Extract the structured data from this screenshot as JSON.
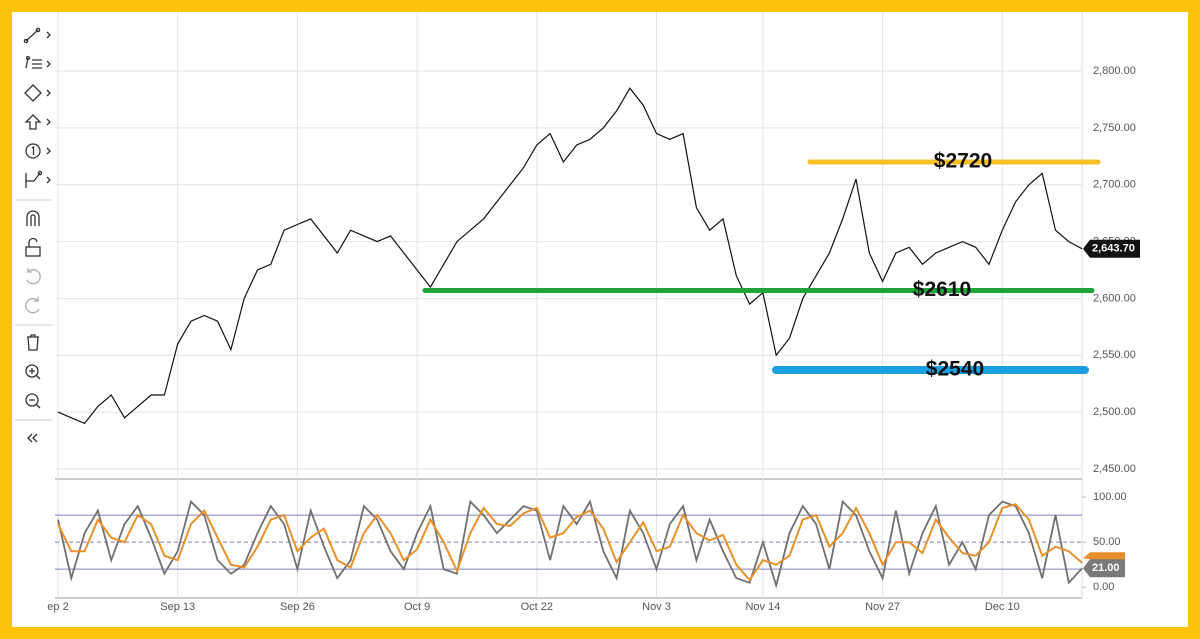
{
  "chart_data": {
    "type": "line",
    "color": "#111111",
    "categories": [
      "ep 2",
      null,
      null,
      null,
      null,
      null,
      null,
      null,
      null,
      "Sep 13",
      null,
      null,
      null,
      null,
      null,
      null,
      null,
      null,
      "Sep 26",
      null,
      null,
      null,
      null,
      null,
      null,
      null,
      null,
      "Oct 9",
      null,
      null,
      null,
      null,
      null,
      null,
      null,
      null,
      "Oct 22",
      null,
      null,
      null,
      null,
      null,
      null,
      null,
      null,
      "Nov 3",
      null,
      null,
      null,
      null,
      null,
      null,
      null,
      "Nov 14",
      null,
      null,
      null,
      null,
      null,
      null,
      null,
      null,
      "Nov 27",
      null,
      null,
      null,
      null,
      null,
      null,
      null,
      null,
      "Dec 10",
      null,
      null,
      null,
      null,
      null,
      null
    ],
    "values": [
      2500,
      2495,
      2490,
      2505,
      2515,
      2495,
      2505,
      2515,
      2515,
      2560,
      2580,
      2585,
      2580,
      2555,
      2600,
      2625,
      2630,
      2660,
      2665,
      2670,
      2655,
      2640,
      2660,
      2655,
      2650,
      2655,
      2640,
      2625,
      2610,
      2630,
      2650,
      2660,
      2670,
      2685,
      2700,
      2715,
      2735,
      2745,
      2720,
      2735,
      2740,
      2750,
      2765,
      2785,
      2770,
      2745,
      2740,
      2745,
      2680,
      2660,
      2670,
      2620,
      2595,
      2605,
      2550,
      2565,
      2600,
      2620,
      2640,
      2670,
      2705,
      2640,
      2615,
      2640,
      2645,
      2630,
      2640,
      2645,
      2650,
      2645,
      2630,
      2660,
      2685,
      2700,
      2710,
      2660,
      2650,
      2643.7
    ],
    "last_value_label": "2,643.70",
    "ylim": [
      2442,
      2852
    ],
    "yticks": [
      {
        "value": 2450,
        "label": "2,450.00"
      },
      {
        "value": 2500,
        "label": "2,500.00"
      },
      {
        "value": 2550,
        "label": "2,550.00"
      },
      {
        "value": 2600,
        "label": "2,600.00"
      },
      {
        "value": 2650,
        "label": "2,650.00"
      },
      {
        "value": 2700,
        "label": "2,700.00"
      },
      {
        "value": 2750,
        "label": "2,750.00"
      },
      {
        "value": 2800,
        "label": "2,800.00"
      }
    ],
    "grid": true,
    "levels": [
      {
        "value": 2720,
        "label": "$2720",
        "color": "#f5c026"
      },
      {
        "value": 2607,
        "label": "$2610",
        "color": "#1ea53a"
      },
      {
        "value": 2537,
        "label": "$2540",
        "color": "#1c9fe0"
      }
    ],
    "oscillator": {
      "ylim": [
        -12,
        119
      ],
      "yticks": [
        {
          "value": 0,
          "label": "0.00"
        },
        {
          "value": 50,
          "label": "50.00"
        },
        {
          "value": 100,
          "label": "100.00"
        }
      ],
      "bands": [
        20,
        80
      ],
      "midline": 50,
      "series": [
        {
          "color": "#707070",
          "values": [
            75,
            10,
            60,
            85,
            30,
            70,
            90,
            55,
            15,
            40,
            95,
            80,
            30,
            15,
            25,
            60,
            90,
            70,
            20,
            85,
            45,
            10,
            30,
            90,
            75,
            40,
            20,
            60,
            90,
            20,
            15,
            95,
            80,
            60,
            75,
            90,
            85,
            30,
            90,
            70,
            95,
            40,
            10,
            85,
            60,
            20,
            70,
            90,
            30,
            75,
            40,
            10,
            5,
            50,
            2,
            60,
            90,
            70,
            20,
            95,
            80,
            40,
            10,
            85,
            15,
            60,
            90,
            25,
            50,
            20,
            80,
            95,
            90,
            60,
            10,
            80,
            5,
            21
          ]
        },
        {
          "color": "#e8912c",
          "values": [
            70,
            40,
            40,
            75,
            55,
            50,
            80,
            70,
            35,
            30,
            70,
            85,
            55,
            25,
            22,
            45,
            75,
            80,
            40,
            55,
            65,
            30,
            22,
            60,
            80,
            60,
            30,
            42,
            75,
            50,
            18,
            60,
            88,
            70,
            68,
            82,
            88,
            55,
            60,
            78,
            85,
            65,
            28,
            50,
            72,
            40,
            45,
            80,
            60,
            52,
            58,
            25,
            8,
            30,
            25,
            35,
            75,
            80,
            45,
            60,
            88,
            60,
            25,
            50,
            50,
            38,
            75,
            55,
            38,
            35,
            50,
            88,
            92,
            75,
            35,
            45,
            40,
            27
          ]
        }
      ],
      "last_value_label": "21.00"
    }
  }
}
